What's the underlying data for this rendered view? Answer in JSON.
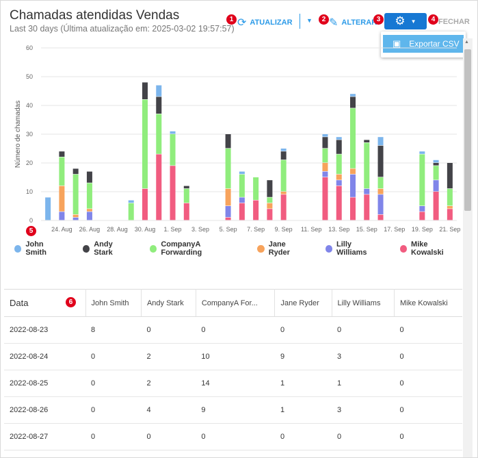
{
  "header": {
    "title": "Chamadas atendidas Vendas",
    "subtitle": "Last 30 days (Última atualização em: 2025-03-02 19:57:57)"
  },
  "toolbar": {
    "refresh_label": "ATUALIZAR",
    "edit_label": "ALTERAR",
    "close_label": "FECHAR",
    "settings_menu": [
      {
        "label": "Exportar CSV"
      }
    ]
  },
  "markers": [
    "1",
    "2",
    "3",
    "4",
    "5",
    "6"
  ],
  "colors": {
    "accent": "#2d9be8",
    "john": "#7cb5ec",
    "andy": "#434348",
    "companya": "#90ed7d",
    "jane": "#f7a35c",
    "lilly": "#8085e9",
    "mike": "#f15c80"
  },
  "chart_data": {
    "type": "bar",
    "stacked": true,
    "ylabel": "Número de chamadas",
    "ylim": [
      0,
      60
    ],
    "yticks": [
      0,
      10,
      20,
      30,
      40,
      50,
      60
    ],
    "grid": true,
    "legend_position": "bottom-left",
    "x_tick_labels": [
      "24. Aug",
      "26. Aug",
      "28. Aug",
      "30. Aug",
      "1. Sep",
      "3. Sep",
      "5. Sep",
      "7. Sep",
      "9. Sep",
      "11. Sep",
      "13. Sep",
      "15. Sep",
      "17. Sep",
      "19. Sep",
      "21. Sep"
    ],
    "categories": [
      "2022-08-23",
      "2022-08-24",
      "2022-08-25",
      "2022-08-26",
      "2022-08-27",
      "2022-08-28",
      "2022-08-29",
      "2022-08-30",
      "2022-08-31",
      "2022-09-01",
      "2022-09-02",
      "2022-09-03",
      "2022-09-04",
      "2022-09-05",
      "2022-09-06",
      "2022-09-07",
      "2022-09-08",
      "2022-09-09",
      "2022-09-10",
      "2022-09-11",
      "2022-09-12",
      "2022-09-13",
      "2022-09-14",
      "2022-09-15",
      "2022-09-16",
      "2022-09-17",
      "2022-09-18",
      "2022-09-19",
      "2022-09-20",
      "2022-09-21"
    ],
    "series": [
      {
        "name": "Mike Kowalski",
        "values": [
          0,
          0,
          0,
          0,
          0,
          0,
          0,
          11,
          23,
          19,
          6,
          0,
          0,
          1,
          6,
          7,
          4,
          9,
          0,
          0,
          15,
          12,
          8,
          9,
          2,
          0,
          0,
          3,
          10,
          4
        ]
      },
      {
        "name": "Lilly Williams",
        "values": [
          0,
          3,
          1,
          3,
          0,
          0,
          0,
          0,
          0,
          0,
          0,
          0,
          0,
          4,
          2,
          0,
          0,
          0,
          0,
          0,
          2,
          2,
          8,
          2,
          7,
          0,
          0,
          2,
          4,
          0
        ]
      },
      {
        "name": "Jane Ryder",
        "values": [
          0,
          9,
          1,
          1,
          0,
          0,
          0,
          0,
          0,
          0,
          0,
          0,
          0,
          6,
          0,
          0,
          2,
          1,
          0,
          0,
          3,
          2,
          2,
          0,
          2,
          0,
          0,
          0,
          0,
          1
        ]
      },
      {
        "name": "CompanyA Forwarding",
        "values": [
          0,
          10,
          14,
          9,
          0,
          0,
          6,
          31,
          14,
          11,
          5,
          0,
          0,
          14,
          8,
          8,
          2,
          11,
          0,
          0,
          5,
          7,
          21,
          16,
          4,
          0,
          0,
          18,
          5,
          6
        ]
      },
      {
        "name": "Andy Stark",
        "values": [
          0,
          2,
          2,
          4,
          0,
          0,
          0,
          6,
          6,
          0,
          1,
          0,
          0,
          5,
          0,
          0,
          6,
          3,
          0,
          0,
          4,
          5,
          4,
          1,
          11,
          0,
          0,
          0,
          1,
          9
        ]
      },
      {
        "name": "John Smith",
        "values": [
          8,
          0,
          0,
          0,
          0,
          0,
          1,
          0,
          4,
          1,
          0,
          0,
          0,
          0,
          1,
          0,
          0,
          1,
          0,
          0,
          1,
          1,
          1,
          0,
          3,
          0,
          0,
          1,
          1,
          0
        ]
      }
    ]
  },
  "legend": [
    {
      "name": "John Smith"
    },
    {
      "name": "Andy Stark"
    },
    {
      "name": "CompanyA Forwarding"
    },
    {
      "name": "Jane Ryder"
    },
    {
      "name": "Lilly Williams"
    },
    {
      "name": "Mike Kowalski"
    }
  ],
  "table": {
    "headers": [
      "Data",
      "John Smith",
      "Andy Stark",
      "CompanyA For...",
      "Jane Ryder",
      "Lilly Williams",
      "Mike Kowalski"
    ],
    "rows": [
      [
        "2022-08-23",
        "8",
        "0",
        "0",
        "0",
        "0",
        "0"
      ],
      [
        "2022-08-24",
        "0",
        "2",
        "10",
        "9",
        "3",
        "0"
      ],
      [
        "2022-08-25",
        "0",
        "2",
        "14",
        "1",
        "1",
        "0"
      ],
      [
        "2022-08-26",
        "0",
        "4",
        "9",
        "1",
        "3",
        "0"
      ],
      [
        "2022-08-27",
        "0",
        "0",
        "0",
        "0",
        "0",
        "0"
      ]
    ]
  }
}
